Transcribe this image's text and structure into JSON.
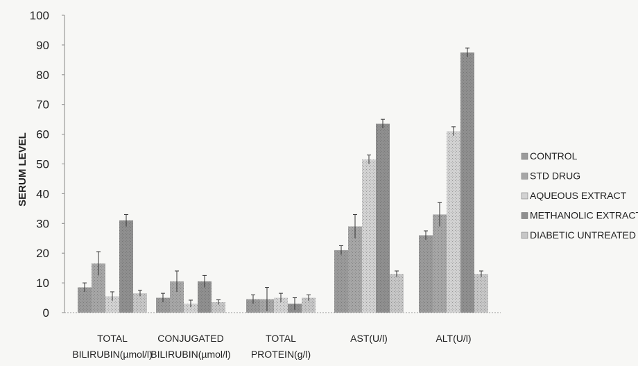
{
  "chart_data": {
    "type": "bar",
    "ylabel": "SERUM LEVEL",
    "xlabel": "",
    "ylim": [
      0,
      100
    ],
    "yticks": [
      0,
      10,
      20,
      30,
      40,
      50,
      60,
      70,
      80,
      90,
      100
    ],
    "grid": false,
    "legend_position": "right",
    "categories": [
      [
        "TOTAL",
        "BILIRUBIN(µmol/l)"
      ],
      [
        "CONJUGATED",
        "BILIRUBIN(µmol/l)"
      ],
      [
        "TOTAL",
        "PROTEIN(g/l)"
      ],
      [
        "AST(U/l)"
      ],
      [
        "ALT(U/l)"
      ]
    ],
    "series": [
      {
        "name": "CONTROL",
        "color": "#9a9a9a",
        "values": [
          8.5,
          5,
          4.5,
          21,
          26
        ],
        "errors": [
          1.5,
          1.5,
          1.5,
          1.5,
          1.5
        ]
      },
      {
        "name": "STD DRUG",
        "color": "#a6a6a6",
        "values": [
          16.5,
          10.5,
          4.5,
          29,
          33
        ],
        "errors": [
          4,
          3.5,
          4,
          4,
          4
        ]
      },
      {
        "name": "AQUEOUS EXTRACT",
        "color": "#d2d2d2",
        "values": [
          5.5,
          3,
          5,
          51.5,
          61
        ],
        "errors": [
          1.5,
          1.2,
          1.5,
          1.5,
          1.5
        ]
      },
      {
        "name": "METHANOLIC EXTRACT",
        "color": "#8f8f8f",
        "values": [
          31,
          10.5,
          3,
          63.5,
          87.5
        ],
        "errors": [
          2,
          2,
          2,
          1.5,
          1.5
        ]
      },
      {
        "name": "DIABETIC UNTREATED",
        "color": "#c6c6c6",
        "values": [
          6.5,
          3.5,
          5,
          13,
          13
        ],
        "errors": [
          1,
          0.8,
          1,
          1,
          1
        ]
      }
    ]
  }
}
